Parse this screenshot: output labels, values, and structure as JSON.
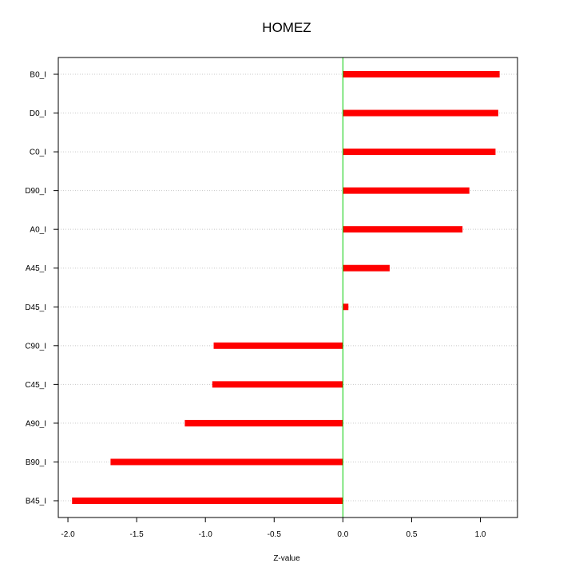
{
  "chart_data": {
    "type": "bar",
    "orientation": "horizontal",
    "title": "HOMEZ",
    "xlabel": "Z-value",
    "ylabel": "",
    "xlim": [
      -2.07,
      1.27
    ],
    "x_ticks": [
      -2.0,
      -1.5,
      -1.0,
      -0.5,
      0.0,
      0.5,
      1.0
    ],
    "x_tick_labels": [
      "-2.0",
      "-1.5",
      "-1.0",
      "-0.5",
      "0.0",
      "0.5",
      "1.0"
    ],
    "reference_line": 0.0,
    "grid": "horizontal dotted lines at each category",
    "bar_color": "#ff0000",
    "reference_line_color": "#00cc00",
    "categories": [
      "B0_I",
      "D0_I",
      "C0_I",
      "D90_I",
      "A0_I",
      "A45_I",
      "D45_I",
      "C90_I",
      "C45_I",
      "A90_I",
      "B90_I",
      "B45_I"
    ],
    "values": [
      1.14,
      1.13,
      1.11,
      0.92,
      0.87,
      0.34,
      0.04,
      -0.94,
      -0.95,
      -1.15,
      -1.69,
      -1.97
    ]
  }
}
